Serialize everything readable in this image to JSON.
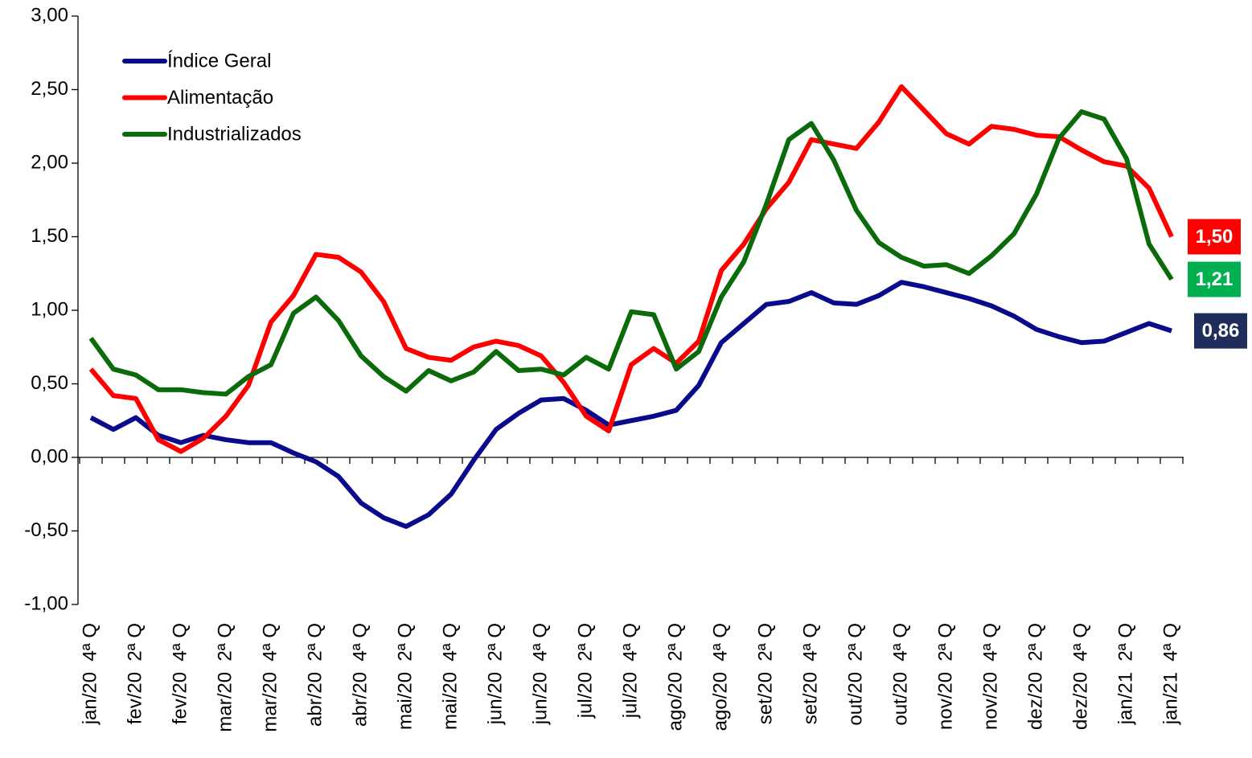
{
  "chart_data": {
    "type": "line",
    "categories": [
      "jan/20  4ª Q",
      null,
      "fev/20  2ª Q",
      null,
      "fev/20  4ª Q",
      null,
      "mar/20  2ª Q",
      null,
      "mar/20  4ª Q",
      null,
      "abr/20  2ª Q",
      null,
      "abr/20  4ª Q",
      null,
      "mai/20  2ª Q",
      null,
      "mai/20  4ª Q",
      null,
      "jun/20  2ª Q",
      null,
      "jun/20  4ª Q",
      null,
      "jul/20  2ª Q",
      null,
      "jul/20  4ª Q",
      null,
      "ago/20  2ª Q",
      null,
      "ago/20  4ª Q",
      null,
      "set/20  2ª Q",
      null,
      "set/20  4ª Q",
      null,
      "out/20  2ª Q",
      null,
      "out/20  4ª Q",
      null,
      "nov/20  2ª Q",
      null,
      "nov/20  4ª Q",
      null,
      "dez/20  2ª Q",
      null,
      "dez/20  4ª Q",
      null,
      "jan/21  2ª Q",
      null,
      "jan/21  4ª Q"
    ],
    "series": [
      {
        "name": "Índice Geral",
        "color": "#0a0a8c",
        "label_color": "#1f2d5c",
        "values": [
          0.27,
          0.19,
          0.27,
          0.15,
          0.1,
          0.15,
          0.12,
          0.1,
          0.1,
          0.03,
          -0.03,
          -0.13,
          -0.31,
          -0.41,
          -0.47,
          -0.39,
          -0.25,
          -0.02,
          0.19,
          0.3,
          0.39,
          0.4,
          0.32,
          0.22,
          0.25,
          0.28,
          0.32,
          0.49,
          0.78,
          0.91,
          1.04,
          1.06,
          1.12,
          1.05,
          1.04,
          1.1,
          1.19,
          1.16,
          1.12,
          1.08,
          1.03,
          0.96,
          0.87,
          0.82,
          0.78,
          0.79,
          0.85,
          0.91,
          0.86
        ],
        "value_labels": [
          null,
          null,
          null,
          null,
          null,
          null,
          null,
          null,
          null,
          null,
          null,
          null,
          null,
          null,
          null,
          null,
          null,
          null,
          null,
          null,
          null,
          null,
          null,
          null,
          null,
          null,
          null,
          null,
          null,
          null,
          null,
          null,
          null,
          null,
          null,
          null,
          null,
          null,
          null,
          null,
          null,
          null,
          null,
          null,
          null,
          null,
          null,
          null,
          "0,86"
        ]
      },
      {
        "name": "Alimentação",
        "color": "#ff0000",
        "label_color": "#ff0000",
        "values": [
          0.6,
          0.42,
          0.4,
          0.12,
          0.04,
          0.13,
          0.28,
          0.49,
          0.92,
          1.1,
          1.38,
          1.36,
          1.26,
          1.06,
          0.74,
          0.68,
          0.66,
          0.75,
          0.79,
          0.76,
          0.69,
          0.51,
          0.28,
          0.18,
          0.63,
          0.74,
          0.64,
          0.79,
          1.27,
          1.45,
          1.69,
          1.87,
          2.16,
          2.13,
          2.1,
          2.28,
          2.52,
          2.36,
          2.2,
          2.13,
          2.25,
          2.23,
          2.19,
          2.18,
          2.09,
          2.01,
          1.98,
          1.83,
          1.5
        ],
        "value_labels": [
          null,
          null,
          null,
          null,
          null,
          null,
          null,
          null,
          null,
          null,
          null,
          null,
          null,
          null,
          null,
          null,
          null,
          null,
          null,
          null,
          null,
          null,
          null,
          null,
          null,
          null,
          null,
          null,
          null,
          null,
          null,
          null,
          null,
          null,
          null,
          null,
          null,
          null,
          null,
          null,
          null,
          null,
          null,
          null,
          null,
          null,
          null,
          null,
          "1,50"
        ]
      },
      {
        "name": "Industrializados",
        "color": "#0b6b0b",
        "label_color": "#00b050",
        "values": [
          0.81,
          0.6,
          0.56,
          0.46,
          0.46,
          0.44,
          0.43,
          0.55,
          0.63,
          0.98,
          1.09,
          0.93,
          0.69,
          0.55,
          0.45,
          0.59,
          0.52,
          0.58,
          0.72,
          0.59,
          0.6,
          0.56,
          0.68,
          0.6,
          0.99,
          0.97,
          0.6,
          0.72,
          1.09,
          1.33,
          1.72,
          2.16,
          2.27,
          2.02,
          1.68,
          1.46,
          1.36,
          1.3,
          1.31,
          1.25,
          1.37,
          1.52,
          1.79,
          2.17,
          2.35,
          2.3,
          2.03,
          1.45,
          1.21
        ],
        "value_labels": [
          null,
          null,
          null,
          null,
          null,
          null,
          null,
          null,
          null,
          null,
          null,
          null,
          null,
          null,
          null,
          null,
          null,
          null,
          null,
          null,
          null,
          null,
          null,
          null,
          null,
          null,
          null,
          null,
          null,
          null,
          null,
          null,
          null,
          null,
          null,
          null,
          null,
          null,
          null,
          null,
          null,
          null,
          null,
          null,
          null,
          null,
          null,
          null,
          "1,21"
        ]
      }
    ],
    "ylim": [
      -1,
      3
    ],
    "yticks": [
      {
        "value": -1,
        "label": "-1,00"
      },
      {
        "value": -0.5,
        "label": "-0,50"
      },
      {
        "value": 0,
        "label": "0,00"
      },
      {
        "value": 0.5,
        "label": "0,50"
      },
      {
        "value": 1,
        "label": "1,00"
      },
      {
        "value": 1.5,
        "label": "1,50"
      },
      {
        "value": 2,
        "label": "2,00"
      },
      {
        "value": 2.5,
        "label": "2,50"
      },
      {
        "value": 3,
        "label": "3,00"
      }
    ],
    "legend": "upper left",
    "grid": false
  }
}
